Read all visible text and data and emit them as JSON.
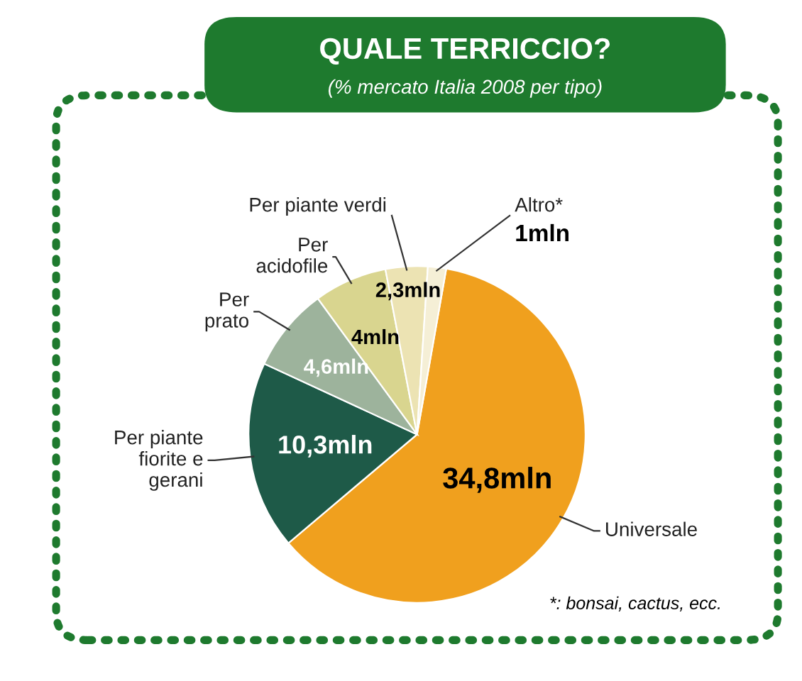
{
  "chart_data": {
    "type": "pie",
    "title": "QUALE TERRICCIO?",
    "subtitle": "(% mercato Italia 2008 per tipo)",
    "categories": [
      "Universale",
      "Per piante\nfiorite e\ngerani",
      "Per\nprato",
      "Per\nacidofile",
      "Per piante verdi",
      "Altro*"
    ],
    "values": [
      34.8,
      10.3,
      4.6,
      4,
      2.3,
      1
    ],
    "value_labels": [
      "34,8mln",
      "10,3mln",
      "4,6mln",
      "4mln",
      "2,3mln",
      "1mln"
    ],
    "colors": [
      "#f0a01e",
      "#1e5a48",
      "#9db39c",
      "#d9d58f",
      "#ece3b3",
      "#f5efd6"
    ],
    "annotations": [
      "*: bonsai, cactus, ecc."
    ]
  }
}
